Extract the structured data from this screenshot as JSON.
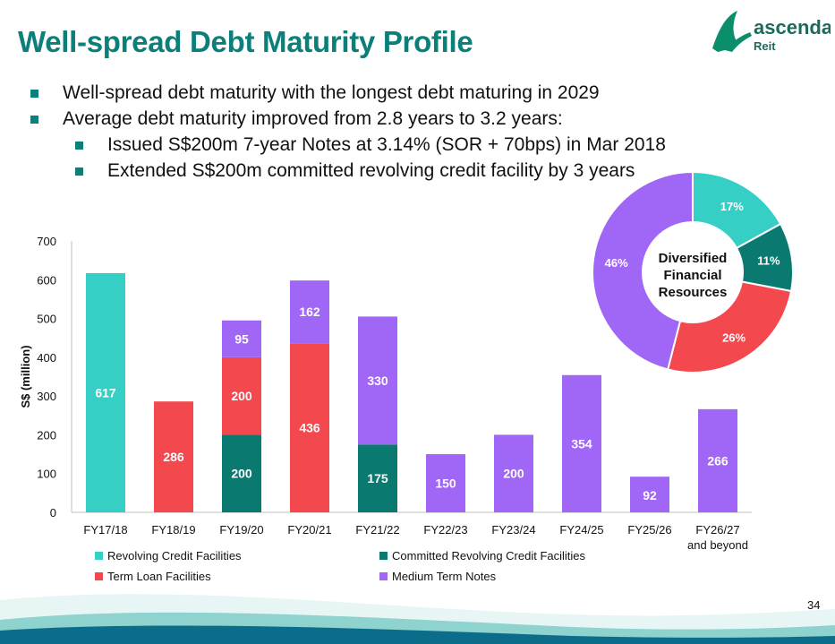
{
  "title": "Well-spread Debt Maturity Profile",
  "logo": {
    "brand": "ascendas",
    "sub": "Reit"
  },
  "bullets": [
    {
      "level": 1,
      "text": "Well-spread debt maturity with the longest debt maturing in 2029"
    },
    {
      "level": 1,
      "text": "Average debt maturity improved from 2.8 years to 3.2 years:"
    },
    {
      "level": 2,
      "text": "Issued S$200m 7-year Notes at 3.14% (SOR + 70bps) in Mar 2018"
    },
    {
      "level": 2,
      "text": "Extended S$200m committed revolving credit facility by 3 years"
    }
  ],
  "page_number": "34",
  "chart_data": [
    {
      "type": "bar",
      "stacked": true,
      "ylabel": "S$ (million)",
      "ylim": [
        0,
        700
      ],
      "yticks": [
        0,
        100,
        200,
        300,
        400,
        500,
        600,
        700
      ],
      "grid": false,
      "categories": [
        "FY17/18",
        "FY18/19",
        "FY19/20",
        "FY20/21",
        "FY21/22",
        "FY22/23",
        "FY23/24",
        "FY24/25",
        "FY25/26",
        "FY26/27\nand beyond"
      ],
      "series": [
        {
          "name": "Revolving Credit Facilities",
          "color": "#35cfc6",
          "values": [
            617,
            0,
            0,
            0,
            0,
            0,
            0,
            0,
            0,
            0
          ]
        },
        {
          "name": "Committed Revolving Credit Facilities",
          "color": "#0a7a70",
          "values": [
            0,
            0,
            200,
            0,
            175,
            0,
            0,
            0,
            0,
            0
          ]
        },
        {
          "name": "Term Loan Facilities",
          "color": "#f4484f",
          "values": [
            0,
            286,
            200,
            436,
            0,
            0,
            0,
            0,
            0,
            0
          ]
        },
        {
          "name": "Medium Term Notes",
          "color": "#a066f6",
          "values": [
            0,
            0,
            95,
            162,
            330,
            150,
            200,
            354,
            92,
            266
          ]
        }
      ],
      "legend_position": "bottom"
    },
    {
      "type": "pie",
      "donut": true,
      "center_text": [
        "Diversified",
        "Financial",
        "Resources"
      ],
      "slices": [
        {
          "label": "17%",
          "value": 17,
          "color": "#35cfc6"
        },
        {
          "label": "11%",
          "value": 11,
          "color": "#0a7a70"
        },
        {
          "label": "26%",
          "value": 26,
          "color": "#f4484f"
        },
        {
          "label": "46%",
          "value": 46,
          "color": "#a066f6"
        }
      ]
    }
  ]
}
